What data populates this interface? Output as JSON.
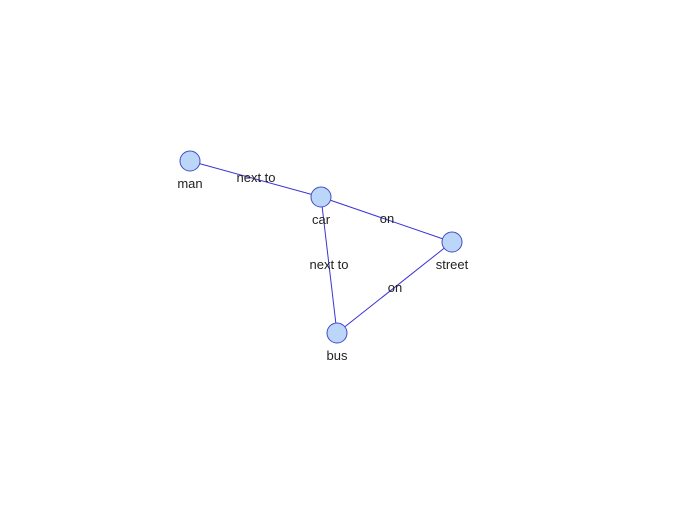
{
  "graph": {
    "nodes": [
      {
        "id": "man",
        "label": "man"
      },
      {
        "id": "car",
        "label": "car"
      },
      {
        "id": "street",
        "label": "street"
      },
      {
        "id": "bus",
        "label": "bus"
      }
    ],
    "edges": [
      {
        "source": "man",
        "target": "car",
        "label": "next to"
      },
      {
        "source": "car",
        "target": "street",
        "label": "on"
      },
      {
        "source": "car",
        "target": "bus",
        "label": "next to"
      },
      {
        "source": "bus",
        "target": "street",
        "label": "on"
      }
    ],
    "colors": {
      "node_fill": "#bcd6fa",
      "node_stroke": "#3f4ec4",
      "edge_stroke": "#3b32d6",
      "text": "#222222"
    }
  }
}
